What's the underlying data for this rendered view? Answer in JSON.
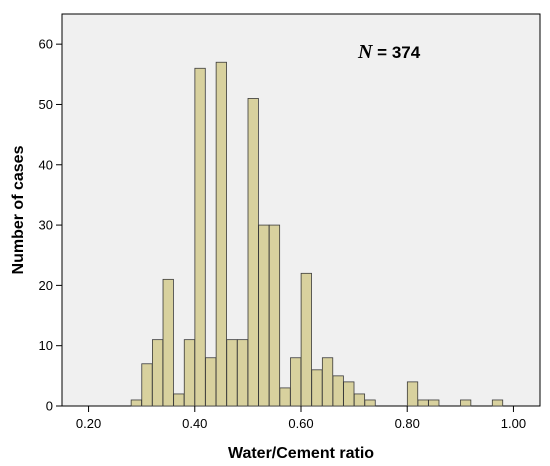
{
  "chart_data": {
    "type": "bar",
    "title": "",
    "xlabel": "Water/Cement ratio",
    "ylabel": "Number of cases",
    "annotation": {
      "symbol": "N",
      "text": " = 374"
    },
    "xlim": [
      0.15,
      1.05
    ],
    "ylim": [
      0,
      65
    ],
    "xticks": [
      0.2,
      0.4,
      0.6,
      0.8,
      1.0
    ],
    "xtick_labels": [
      "0.20",
      "0.40",
      "0.60",
      "0.80",
      "1.00"
    ],
    "yticks": [
      0,
      10,
      20,
      30,
      40,
      50,
      60
    ],
    "ytick_labels": [
      "0",
      "10",
      "20",
      "30",
      "40",
      "50",
      "60"
    ],
    "bin_width": 0.0196,
    "bins": [
      {
        "x": 0.29,
        "count": 1
      },
      {
        "x": 0.31,
        "count": 7
      },
      {
        "x": 0.33,
        "count": 11
      },
      {
        "x": 0.35,
        "count": 21
      },
      {
        "x": 0.37,
        "count": 2
      },
      {
        "x": 0.39,
        "count": 11
      },
      {
        "x": 0.41,
        "count": 56
      },
      {
        "x": 0.43,
        "count": 8
      },
      {
        "x": 0.45,
        "count": 57
      },
      {
        "x": 0.47,
        "count": 11
      },
      {
        "x": 0.49,
        "count": 11
      },
      {
        "x": 0.51,
        "count": 51
      },
      {
        "x": 0.53,
        "count": 30
      },
      {
        "x": 0.55,
        "count": 30
      },
      {
        "x": 0.57,
        "count": 3
      },
      {
        "x": 0.59,
        "count": 8
      },
      {
        "x": 0.61,
        "count": 22
      },
      {
        "x": 0.63,
        "count": 6
      },
      {
        "x": 0.65,
        "count": 8
      },
      {
        "x": 0.67,
        "count": 5
      },
      {
        "x": 0.69,
        "count": 4
      },
      {
        "x": 0.71,
        "count": 2
      },
      {
        "x": 0.73,
        "count": 1
      },
      {
        "x": 0.81,
        "count": 4
      },
      {
        "x": 0.83,
        "count": 1
      },
      {
        "x": 0.85,
        "count": 1
      },
      {
        "x": 0.91,
        "count": 1
      },
      {
        "x": 0.97,
        "count": 1
      }
    ],
    "colors": {
      "bar_fill": "#d8d19e",
      "bar_stroke": "#3a3a3a",
      "plot_bg": "#f0f0f0"
    }
  }
}
